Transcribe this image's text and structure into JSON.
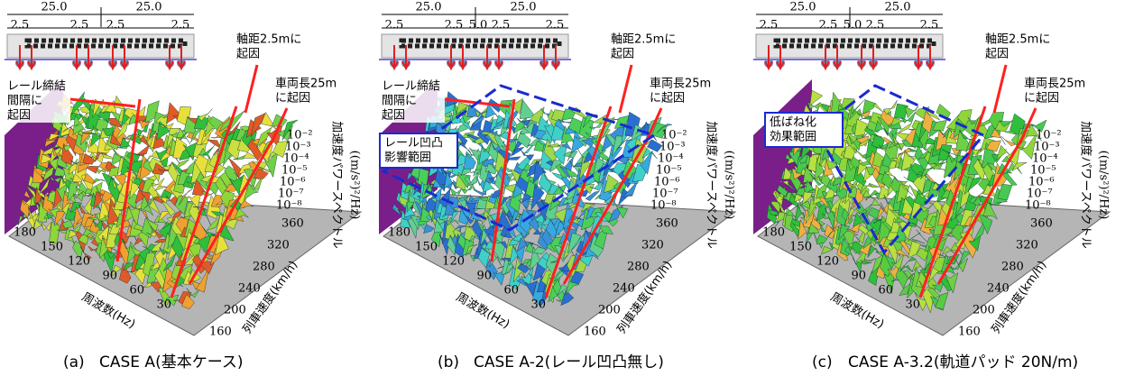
{
  "panels": [
    {
      "dims": {
        "spans": [
          "25.0",
          "25.0"
        ],
        "gaps": [
          "2.5",
          "2.5",
          "2.5",
          "2.5"
        ]
      },
      "annotations": {
        "fastening": [
          "レール締結",
          "間隔に",
          "起因"
        ],
        "wheelbase": [
          "軸距2.5mに",
          "起因"
        ],
        "car_length": [
          "車両長25m",
          "に起因"
        ]
      },
      "caption": {
        "letter": "(a)",
        "text": "CASE A(基本ケース)"
      }
    },
    {
      "dims": {
        "spans": [
          "25.0",
          "25.0"
        ],
        "gaps": [
          "2.5",
          "2.5",
          "5.0",
          "2.5",
          "2.5"
        ]
      },
      "annotations": {
        "fastening": [
          "レール締結",
          "間隔に",
          "起因"
        ],
        "wheelbase": [
          "軸距2.5mに",
          "起因"
        ],
        "car_length": [
          "車両長25m",
          "に起因"
        ],
        "box": [
          "レール凹凸",
          "影響範囲"
        ]
      },
      "caption": {
        "letter": "(b)",
        "text": "CASE A-2(レール凹凸無し)"
      }
    },
    {
      "dims": {
        "spans": [
          "25.0",
          "25.0"
        ],
        "gaps": [
          "2.5",
          "2.5",
          "5.0",
          "2.5",
          "2.5"
        ]
      },
      "annotations": {
        "wheelbase": [
          "軸距2.5mに",
          "起因"
        ],
        "car_length": [
          "車両長25m",
          "に起因"
        ],
        "box": [
          "低ばね化",
          "効果範囲"
        ]
      },
      "caption": {
        "letter": "(c)",
        "text": "CASE A-3.2(軌道パッド 20N/m)"
      }
    }
  ],
  "axes": {
    "frequency_label": "周波数(Hz)",
    "frequency_ticks": [
      180,
      150,
      120,
      90,
      60,
      30
    ],
    "speed_label": "列車速度(km/h)",
    "speed_ticks": [
      160,
      200,
      240,
      280,
      320,
      360
    ],
    "psd_label": [
      "加速度パワースペクトル",
      "((m/s²)²/Hz)"
    ],
    "psd_ticks": [
      "10⁻²",
      "10⁻³",
      "10⁻⁴",
      "10⁻⁵",
      "10⁻⁶",
      "10⁻⁷",
      "10⁻⁸"
    ]
  }
}
